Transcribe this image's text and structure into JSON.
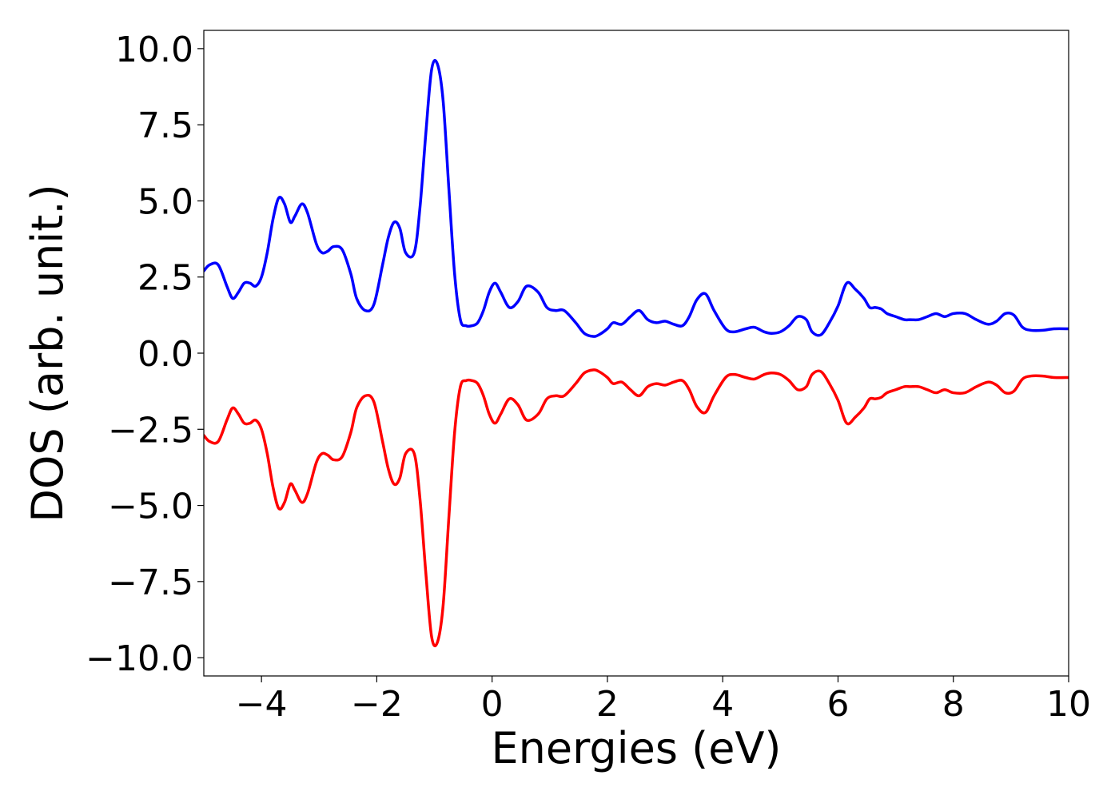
{
  "chart_data": {
    "type": "line",
    "title": "",
    "xlabel": "Energies (eV)",
    "ylabel": "DOS (arb. unit.)",
    "xlim": [
      -5,
      10
    ],
    "ylim": [
      -10.6,
      10.6
    ],
    "x_ticks": [
      -4,
      -2,
      0,
      2,
      4,
      6,
      8,
      10
    ],
    "x_tick_labels": [
      "−4",
      "−2",
      "0",
      "2",
      "4",
      "6",
      "8",
      "10"
    ],
    "y_ticks": [
      10,
      7.5,
      5,
      2.5,
      0,
      -2.5,
      -5,
      -7.5,
      -10
    ],
    "y_tick_labels": [
      "10.0",
      "7.5",
      "5.0",
      "2.5",
      "0.0",
      "−2.5",
      "−5.0",
      "−7.5",
      "−10.0"
    ],
    "grid": false,
    "legend": "none",
    "series": [
      {
        "color": "#0000ff",
        "x": [
          -5.0,
          -4.9,
          -4.75,
          -4.6,
          -4.5,
          -4.4,
          -4.3,
          -4.2,
          -4.1,
          -4.0,
          -3.9,
          -3.8,
          -3.7,
          -3.6,
          -3.5,
          -3.42,
          -3.3,
          -3.2,
          -3.05,
          -2.95,
          -2.85,
          -2.75,
          -2.6,
          -2.45,
          -2.35,
          -2.2,
          -2.05,
          -1.9,
          -1.8,
          -1.7,
          -1.6,
          -1.5,
          -1.35,
          -1.25,
          -1.15,
          -1.05,
          -0.95,
          -0.85,
          -0.75,
          -0.65,
          -0.55,
          -0.45,
          -0.35,
          -0.25,
          -0.15,
          -0.05,
          0.05,
          0.15,
          0.3,
          0.45,
          0.6,
          0.8,
          0.95,
          1.1,
          1.25,
          1.45,
          1.6,
          1.75,
          1.85,
          2.0,
          2.1,
          2.25,
          2.4,
          2.55,
          2.7,
          2.85,
          3.0,
          3.15,
          3.3,
          3.42,
          3.55,
          3.7,
          3.85,
          4.05,
          4.2,
          4.4,
          4.55,
          4.72,
          4.85,
          5.0,
          5.15,
          5.3,
          5.45,
          5.55,
          5.7,
          5.85,
          6.0,
          6.15,
          6.3,
          6.45,
          6.55,
          6.65,
          6.75,
          6.85,
          7.0,
          7.15,
          7.25,
          7.4,
          7.55,
          7.7,
          7.85,
          8.0,
          8.2,
          8.4,
          8.6,
          8.75,
          8.9,
          9.05,
          9.2,
          9.35,
          9.55,
          9.75,
          10.0
        ],
        "y": [
          2.7,
          2.9,
          2.9,
          2.2,
          1.8,
          2.0,
          2.3,
          2.3,
          2.2,
          2.5,
          3.3,
          4.4,
          5.1,
          4.9,
          4.3,
          4.5,
          4.9,
          4.6,
          3.6,
          3.3,
          3.35,
          3.5,
          3.4,
          2.6,
          1.8,
          1.4,
          1.6,
          2.9,
          3.8,
          4.3,
          4.1,
          3.3,
          3.3,
          4.8,
          7.2,
          9.3,
          9.5,
          8.3,
          5.4,
          2.6,
          1.1,
          0.9,
          0.9,
          1.0,
          1.4,
          2.0,
          2.3,
          2.0,
          1.5,
          1.7,
          2.2,
          2.0,
          1.5,
          1.4,
          1.4,
          1.0,
          0.65,
          0.55,
          0.6,
          0.8,
          1.0,
          0.95,
          1.2,
          1.4,
          1.1,
          1.0,
          1.05,
          0.95,
          0.9,
          1.2,
          1.75,
          1.95,
          1.4,
          0.8,
          0.7,
          0.8,
          0.85,
          0.7,
          0.65,
          0.7,
          0.9,
          1.2,
          1.1,
          0.7,
          0.6,
          1.0,
          1.55,
          2.3,
          2.1,
          1.8,
          1.5,
          1.5,
          1.45,
          1.3,
          1.2,
          1.1,
          1.1,
          1.1,
          1.2,
          1.3,
          1.2,
          1.3,
          1.3,
          1.1,
          0.95,
          1.05,
          1.3,
          1.25,
          0.85,
          0.75,
          0.75,
          0.8,
          0.8
        ]
      },
      {
        "color": "#ff0000",
        "x": [
          -5.0,
          -4.9,
          -4.75,
          -4.6,
          -4.5,
          -4.4,
          -4.3,
          -4.2,
          -4.1,
          -4.0,
          -3.9,
          -3.8,
          -3.7,
          -3.6,
          -3.5,
          -3.42,
          -3.3,
          -3.2,
          -3.05,
          -2.95,
          -2.85,
          -2.75,
          -2.6,
          -2.45,
          -2.35,
          -2.2,
          -2.05,
          -1.9,
          -1.8,
          -1.7,
          -1.6,
          -1.5,
          -1.35,
          -1.25,
          -1.15,
          -1.05,
          -0.95,
          -0.85,
          -0.75,
          -0.65,
          -0.55,
          -0.45,
          -0.35,
          -0.25,
          -0.15,
          -0.05,
          0.05,
          0.15,
          0.3,
          0.45,
          0.6,
          0.8,
          0.95,
          1.1,
          1.25,
          1.45,
          1.6,
          1.75,
          1.85,
          2.0,
          2.1,
          2.25,
          2.4,
          2.55,
          2.7,
          2.85,
          3.0,
          3.15,
          3.3,
          3.42,
          3.55,
          3.7,
          3.85,
          4.05,
          4.2,
          4.4,
          4.55,
          4.72,
          4.85,
          5.0,
          5.15,
          5.3,
          5.45,
          5.55,
          5.7,
          5.85,
          6.0,
          6.15,
          6.3,
          6.45,
          6.55,
          6.65,
          6.75,
          6.85,
          7.0,
          7.15,
          7.25,
          7.4,
          7.55,
          7.7,
          7.85,
          8.0,
          8.2,
          8.4,
          8.6,
          8.75,
          8.9,
          9.05,
          9.2,
          9.35,
          9.55,
          9.75,
          10.0
        ],
        "y": [
          -2.7,
          -2.9,
          -2.9,
          -2.2,
          -1.8,
          -2.0,
          -2.3,
          -2.3,
          -2.2,
          -2.5,
          -3.3,
          -4.4,
          -5.1,
          -4.9,
          -4.3,
          -4.5,
          -4.9,
          -4.6,
          -3.6,
          -3.3,
          -3.35,
          -3.5,
          -3.4,
          -2.6,
          -1.8,
          -1.4,
          -1.6,
          -2.9,
          -3.8,
          -4.3,
          -4.1,
          -3.3,
          -3.3,
          -4.8,
          -7.2,
          -9.3,
          -9.5,
          -8.3,
          -5.4,
          -2.6,
          -1.1,
          -0.9,
          -0.9,
          -1.0,
          -1.4,
          -2.0,
          -2.3,
          -2.0,
          -1.5,
          -1.7,
          -2.2,
          -2.0,
          -1.5,
          -1.4,
          -1.4,
          -1.0,
          -0.65,
          -0.55,
          -0.6,
          -0.8,
          -1.0,
          -0.95,
          -1.2,
          -1.4,
          -1.1,
          -1.0,
          -1.05,
          -0.95,
          -0.9,
          -1.2,
          -1.75,
          -1.95,
          -1.4,
          -0.8,
          -0.7,
          -0.8,
          -0.85,
          -0.7,
          -0.65,
          -0.7,
          -0.9,
          -1.2,
          -1.1,
          -0.7,
          -0.6,
          -1.0,
          -1.55,
          -2.3,
          -2.1,
          -1.8,
          -1.5,
          -1.5,
          -1.45,
          -1.3,
          -1.2,
          -1.1,
          -1.1,
          -1.1,
          -1.2,
          -1.3,
          -1.2,
          -1.3,
          -1.3,
          -1.1,
          -0.95,
          -1.05,
          -1.3,
          -1.25,
          -0.85,
          -0.75,
          -0.75,
          -0.8,
          -0.8
        ]
      }
    ]
  }
}
